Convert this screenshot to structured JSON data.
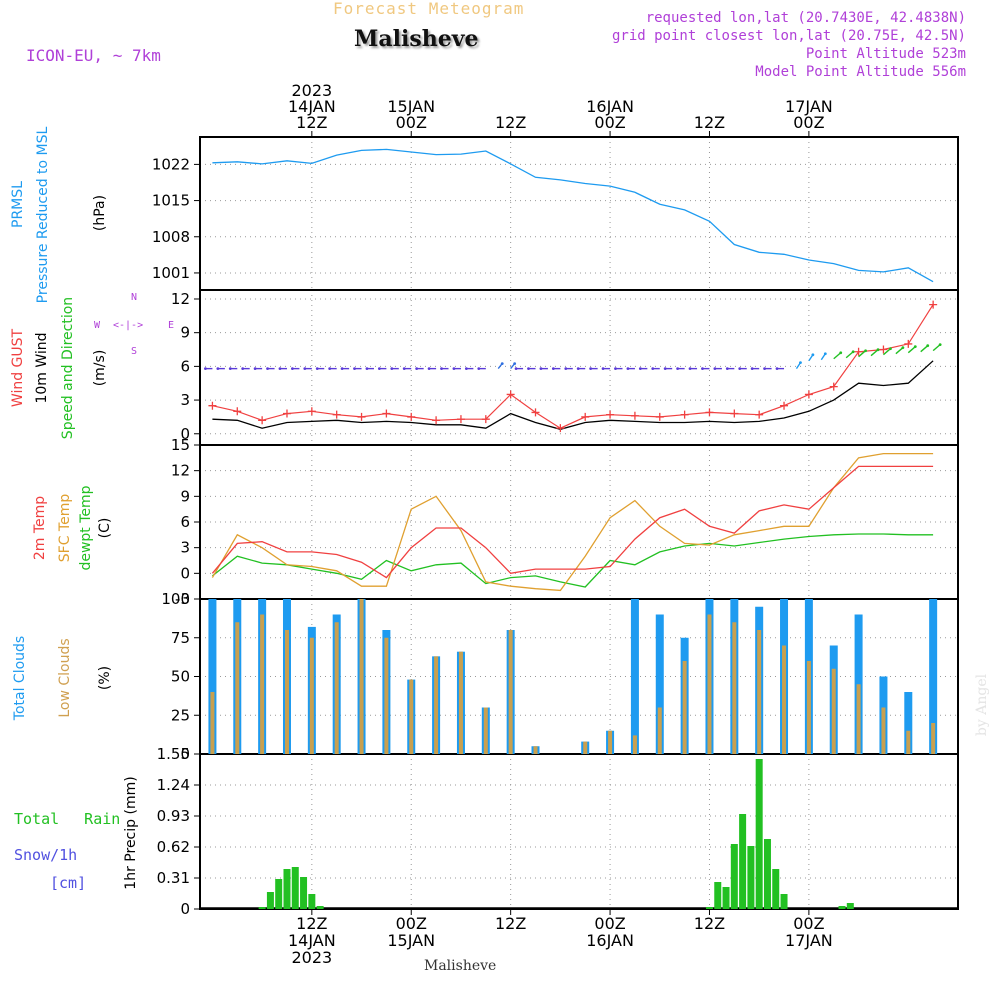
{
  "header": {
    "supertitle": "Forecast Meteogram",
    "location": "Malisheve",
    "model": "ICON-EU, ~ 7km",
    "requested": "requested lon,lat (20.7430E, 42.4838N)",
    "grid_point": "grid point closest lon,lat (20.75E, 42.5N)",
    "point_altitude": "Point Altitude 523m",
    "model_altitude": "Model Point Altitude 556m",
    "footer_location": "Malisheve",
    "credit": "by Angel"
  },
  "colors": {
    "pressure": "#1e9bf0",
    "gust": "#f04040",
    "wind": "#000000",
    "temp2m": "#f04040",
    "sfc": "#e0a030",
    "dewpt": "#22c022",
    "total_clouds": "#1e9bf0",
    "low_clouds": "#c8a050",
    "rain": "#22c022",
    "snow": "#5050e0",
    "purple": "#b040d8"
  },
  "time_axis": {
    "top": [
      {
        "t": 12,
        "lines": [
          "2023",
          "14JAN",
          "12Z"
        ]
      },
      {
        "t": 24,
        "lines": [
          "15JAN",
          "00Z"
        ]
      },
      {
        "t": 36,
        "lines": [
          "12Z"
        ]
      },
      {
        "t": 48,
        "lines": [
          "16JAN",
          "00Z"
        ]
      },
      {
        "t": 60,
        "lines": [
          "12Z"
        ]
      },
      {
        "t": 72,
        "lines": [
          "17JAN",
          "00Z"
        ]
      }
    ],
    "bottom": [
      {
        "t": 12,
        "lines": [
          "12Z",
          "14JAN",
          "2023"
        ]
      },
      {
        "t": 24,
        "lines": [
          "00Z",
          "15JAN"
        ]
      },
      {
        "t": 36,
        "lines": [
          "12Z"
        ]
      },
      {
        "t": 48,
        "lines": [
          "00Z",
          "16JAN"
        ]
      },
      {
        "t": 60,
        "lines": [
          "12Z"
        ]
      },
      {
        "t": 72,
        "lines": [
          "00Z",
          "17JAN"
        ]
      }
    ]
  },
  "compass": {
    "n": "N",
    "s": "S",
    "w": "W",
    "e": "E",
    "arrows": "<-|->"
  },
  "chart_data": [
    {
      "type": "line",
      "name": "pressure",
      "ylabel_lines": [
        "PRMSL",
        "Pressure Reduced to MSL"
      ],
      "unit": "(hPa)",
      "ylim": [
        997.7,
        1027.3
      ],
      "ticks": [
        1001,
        1008,
        1015,
        1022
      ],
      "x_hours": [
        0,
        3,
        6,
        9,
        12,
        15,
        18,
        21,
        24,
        27,
        30,
        33,
        36,
        39,
        42,
        45,
        48,
        51,
        54,
        57,
        60,
        63,
        66,
        69,
        72,
        75,
        78,
        81,
        84,
        87
      ],
      "values": [
        1022.3,
        1022.5,
        1022.1,
        1022.7,
        1022.2,
        1023.8,
        1024.7,
        1024.9,
        1024.4,
        1023.9,
        1024.0,
        1024.6,
        1022.1,
        1019.5,
        1019.0,
        1018.3,
        1017.8,
        1016.6,
        1014.3,
        1013.2,
        1011.0,
        1006.5,
        1005.0,
        1004.6,
        1003.5,
        1002.8,
        1001.5,
        1001.2,
        1002.0,
        999.3
      ]
    },
    {
      "type": "line",
      "name": "wind",
      "ylabel_lines": [
        "Wind GUST",
        "10m Wind",
        "Speed and Direction"
      ],
      "unit": "(m/s)",
      "ylim": [
        -1,
        12.8
      ],
      "ticks": [
        0,
        3,
        6,
        9,
        12
      ],
      "x_hours": [
        0,
        3,
        6,
        9,
        12,
        15,
        18,
        21,
        24,
        27,
        30,
        33,
        36,
        39,
        42,
        45,
        48,
        51,
        54,
        57,
        60,
        63,
        66,
        69,
        72,
        75,
        78,
        81,
        84,
        87
      ],
      "gust": [
        2.5,
        2.0,
        1.2,
        1.8,
        2.0,
        1.7,
        1.5,
        1.8,
        1.5,
        1.2,
        1.3,
        1.3,
        3.5,
        1.9,
        0.5,
        1.5,
        1.7,
        1.6,
        1.5,
        1.7,
        1.9,
        1.8,
        1.7,
        2.5,
        3.5,
        4.2,
        7.3,
        7.5,
        8.0,
        11.5
      ],
      "speed": [
        1.3,
        1.2,
        0.5,
        1.0,
        1.1,
        1.2,
        1.0,
        1.1,
        1.0,
        0.8,
        0.8,
        0.5,
        1.8,
        1.0,
        0.4,
        1.0,
        1.2,
        1.1,
        1.0,
        1.0,
        1.1,
        1.0,
        1.1,
        1.4,
        2.0,
        3.0,
        4.5,
        4.3,
        4.5,
        6.5
      ],
      "arrow_level": 5.8
    },
    {
      "type": "line",
      "name": "temperature",
      "ylabel_lines": [
        "2m Temp",
        "SFC Temp",
        "dewpt Temp"
      ],
      "unit": "(C)",
      "ylim": [
        -3,
        15
      ],
      "ticks": [
        -3,
        0,
        3,
        6,
        9,
        12,
        15
      ],
      "x_hours": [
        0,
        3,
        6,
        9,
        12,
        15,
        18,
        21,
        24,
        27,
        30,
        33,
        36,
        39,
        42,
        45,
        48,
        51,
        54,
        57,
        60,
        63,
        66,
        69,
        72,
        75,
        78,
        81,
        84,
        87
      ],
      "temp2m": [
        0.0,
        3.5,
        3.7,
        2.5,
        2.5,
        2.2,
        1.3,
        -0.5,
        3.0,
        5.3,
        5.3,
        3.0,
        0.0,
        0.5,
        0.5,
        0.5,
        0.8,
        4.0,
        6.5,
        7.5,
        5.5,
        4.7,
        7.3,
        8.0,
        7.5,
        10.0,
        12.5,
        12.5,
        12.5,
        12.5
      ],
      "sfc": [
        -0.5,
        4.5,
        3.0,
        1.0,
        0.8,
        0.3,
        -1.5,
        -1.5,
        7.5,
        9.0,
        5.0,
        -1.0,
        -1.5,
        -1.8,
        -2.0,
        2.0,
        6.5,
        8.5,
        5.5,
        3.5,
        3.3,
        4.5,
        5.0,
        5.5,
        5.5,
        10.0,
        13.5,
        14.0,
        14.0,
        14.0
      ],
      "dewpt": [
        -0.3,
        2.0,
        1.2,
        1.0,
        0.5,
        0.0,
        -0.7,
        1.5,
        0.3,
        1.0,
        1.2,
        -1.2,
        -0.5,
        -0.3,
        -1.0,
        -1.6,
        1.5,
        1.0,
        2.5,
        3.2,
        3.5,
        3.2,
        3.6,
        4.0,
        4.3,
        4.5,
        4.6,
        4.6,
        4.5,
        4.5
      ]
    },
    {
      "type": "bar",
      "name": "clouds",
      "ylabel_lines": [
        "Total Clouds",
        "Low Clouds"
      ],
      "unit": "(%)",
      "ylim": [
        0,
        100
      ],
      "ticks": [
        0,
        25,
        50,
        75,
        100
      ],
      "x_hours": [
        0,
        3,
        6,
        9,
        12,
        15,
        18,
        21,
        24,
        27,
        30,
        33,
        36,
        39,
        42,
        45,
        48,
        51,
        54,
        57,
        60,
        63,
        66,
        69,
        72,
        75,
        78,
        81,
        84,
        87
      ],
      "total": [
        100,
        100,
        100,
        100,
        82,
        90,
        100,
        80,
        48,
        63,
        66,
        30,
        80,
        5,
        0,
        8,
        15,
        100,
        90,
        75,
        100,
        100,
        95,
        100,
        100,
        70,
        90,
        50,
        40,
        100
      ],
      "low": [
        40,
        85,
        90,
        80,
        75,
        85,
        100,
        75,
        48,
        63,
        66,
        30,
        80,
        5,
        0,
        8,
        15,
        12,
        30,
        60,
        90,
        85,
        80,
        70,
        60,
        55,
        45,
        30,
        15,
        20
      ]
    },
    {
      "type": "bar",
      "name": "precip",
      "ylabel_lines": [
        "Total Rain",
        "Snow/1h",
        "[cm]"
      ],
      "unit": "1hr Precip (mm)",
      "ylim": [
        0,
        1.55
      ],
      "ticks": [
        0,
        0.31,
        0.62,
        0.93,
        1.24,
        1.55
      ],
      "x_hours": [
        6,
        7,
        8,
        9,
        10,
        11,
        12,
        13,
        60,
        61,
        62,
        63,
        64,
        65,
        66,
        67,
        68,
        69,
        70,
        76,
        77
      ],
      "rain": [
        0.02,
        0.17,
        0.3,
        0.4,
        0.42,
        0.32,
        0.15,
        0.03,
        0.02,
        0.27,
        0.22,
        0.65,
        0.95,
        0.63,
        1.5,
        0.7,
        0.4,
        0.15,
        0.0,
        0.03,
        0.06
      ],
      "snow": [
        0,
        0,
        0,
        0,
        0,
        0,
        0,
        0,
        0,
        0,
        0,
        0,
        0,
        0,
        0,
        0,
        0,
        0,
        0,
        0,
        0
      ]
    }
  ]
}
